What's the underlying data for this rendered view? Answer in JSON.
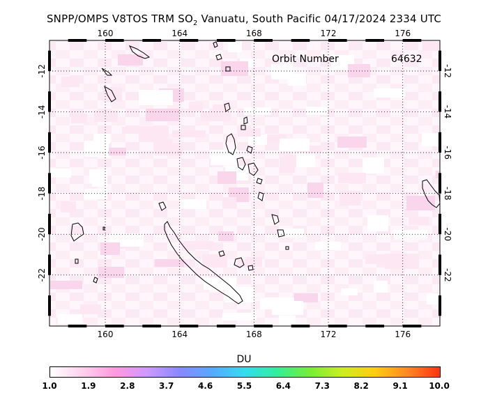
{
  "title": {
    "prefix": "SNPP/OMPS V8TOS TRM SO",
    "subscript": "2",
    "suffix": " Vanuatu, South Pacific 04/17/2024 2334 UTC"
  },
  "orbit": {
    "label": "Orbit Number",
    "value": "64632"
  },
  "map": {
    "lon_range": [
      157,
      178
    ],
    "lat_range": [
      -24.5,
      -10.5
    ],
    "lon_ticks": [
      "160",
      "164",
      "168",
      "172",
      "176"
    ],
    "lat_ticks": [
      "-12",
      "-14",
      "-16",
      "-18",
      "-20",
      "-22"
    ],
    "lon_values": [
      160,
      164,
      168,
      172,
      176
    ],
    "lat_values": [
      -12,
      -14,
      -16,
      -18,
      -20,
      -22
    ],
    "grid": "dotted"
  },
  "colorbar": {
    "title": "DU",
    "ticks": [
      "1.0",
      "1.9",
      "2.8",
      "3.7",
      "4.6",
      "5.5",
      "6.4",
      "7.3",
      "8.2",
      "9.1",
      "10.0"
    ],
    "range": [
      1.0,
      10.0
    ],
    "colors": [
      "#ffffff",
      "#ffd0ee",
      "#ff99dd",
      "#cc99ff",
      "#8888ff",
      "#55aaff",
      "#33ddee",
      "#33ee99",
      "#77ee33",
      "#ccee22",
      "#ffcc11",
      "#ff8822",
      "#ff3311"
    ]
  }
}
